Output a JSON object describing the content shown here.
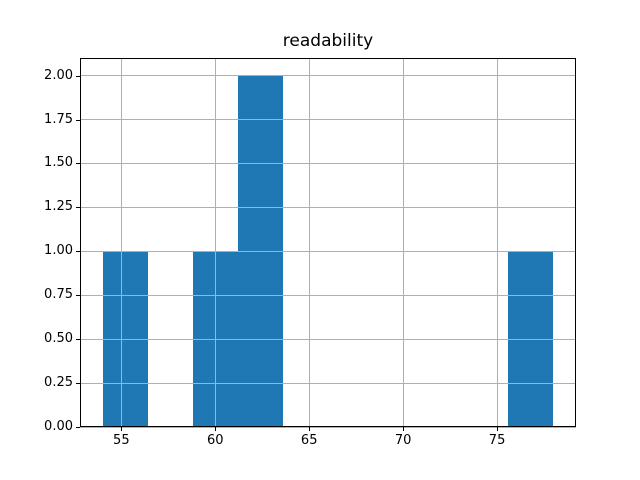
{
  "figure": {
    "background": "#ffffff"
  },
  "chart_data": {
    "type": "bar",
    "subtype": "histogram",
    "title": "readability",
    "xlabel": "",
    "ylabel": "",
    "grid": true,
    "grid_on_top_of_bars": true,
    "legend": false,
    "bar_color": "#1f77b4",
    "grid_color": "#b0b0b0",
    "spine_color": "#000000",
    "xlim": [
      52.8,
      79.2
    ],
    "ylim": [
      0,
      2.1
    ],
    "bins": {
      "edges": [
        54.0,
        56.4,
        58.8,
        61.2,
        63.6,
        66.0,
        68.4,
        70.8,
        73.2,
        75.6,
        78.0
      ],
      "counts": [
        1,
        0,
        1,
        2,
        0,
        0,
        0,
        0,
        0,
        1
      ]
    },
    "total_observations": 5,
    "xticks": [
      {
        "value": 55,
        "label": "55"
      },
      {
        "value": 60,
        "label": "60"
      },
      {
        "value": 65,
        "label": "65"
      },
      {
        "value": 70,
        "label": "70"
      },
      {
        "value": 75,
        "label": "75"
      }
    ],
    "yticks": [
      {
        "value": 0.0,
        "label": "0.00"
      },
      {
        "value": 0.25,
        "label": "0.25"
      },
      {
        "value": 0.5,
        "label": "0.50"
      },
      {
        "value": 0.75,
        "label": "0.75"
      },
      {
        "value": 1.0,
        "label": "1.00"
      },
      {
        "value": 1.25,
        "label": "1.25"
      },
      {
        "value": 1.5,
        "label": "1.50"
      },
      {
        "value": 1.75,
        "label": "1.75"
      },
      {
        "value": 2.0,
        "label": "2.00"
      }
    ]
  }
}
